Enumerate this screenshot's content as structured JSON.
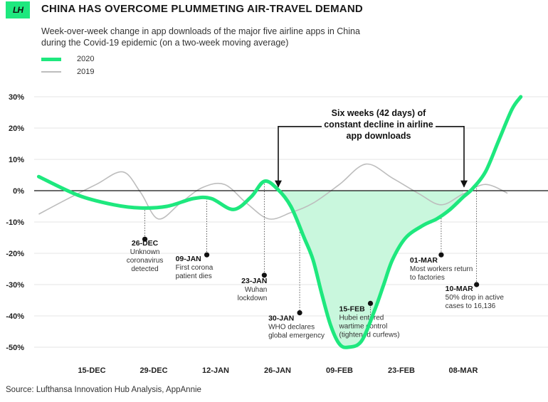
{
  "header": {
    "logo_text": "LH",
    "title": "CHINA HAS OVERCOME PLUMMETING AIR-TRAVEL DEMAND",
    "subtitle": "Week-over-week change in app downloads of the major five airline apps in China during the Covid-19 epidemic (on a two-week moving average)"
  },
  "footer": {
    "source": "Source: Lufthansa Innovation Hub Analysis, AppAnnie"
  },
  "colors": {
    "series_2020": "#1ee87e",
    "series_2019": "#bdbdbd",
    "fill": "#c9f7dd",
    "axis": "#111111"
  },
  "chart_data": {
    "type": "line",
    "x_unit": "date",
    "ylim": [
      -50,
      30
    ],
    "xlim": [
      "2019-12-01",
      "2020-03-22"
    ],
    "y_ticks": [
      30,
      20,
      10,
      0,
      -10,
      -20,
      -30,
      -40,
      -50
    ],
    "y_tick_labels": [
      "30%",
      "20%",
      "10%",
      "0%",
      "-10%",
      "-20%",
      "-30%",
      "-40%",
      "-50%"
    ],
    "x_ticks": [
      {
        "date": "2019-12-15",
        "label": "15-DEC"
      },
      {
        "date": "2019-12-29",
        "label": "29-DEC"
      },
      {
        "date": "2020-01-12",
        "label": "12-JAN"
      },
      {
        "date": "2020-01-26",
        "label": "26-JAN"
      },
      {
        "date": "2020-02-09",
        "label": "09-FEB"
      },
      {
        "date": "2020-02-23",
        "label": "23-FEB"
      },
      {
        "date": "2020-03-08",
        "label": "08-MAR"
      }
    ],
    "grid": true,
    "legend": "top-left",
    "series": [
      {
        "name": "2020",
        "points": [
          [
            "2019-12-03",
            4.5
          ],
          [
            "2019-12-12",
            -1.5
          ],
          [
            "2019-12-20",
            -4.5
          ],
          [
            "2019-12-26",
            -5.5
          ],
          [
            "2020-01-01",
            -5
          ],
          [
            "2020-01-07",
            -2.5
          ],
          [
            "2020-01-11",
            -2.5
          ],
          [
            "2020-01-16",
            -6
          ],
          [
            "2020-01-20",
            -2
          ],
          [
            "2020-01-23",
            3
          ],
          [
            "2020-01-26",
            0.5
          ],
          [
            "2020-01-29",
            -5
          ],
          [
            "2020-02-01",
            -15
          ],
          [
            "2020-02-03",
            -22
          ],
          [
            "2020-02-05",
            -33
          ],
          [
            "2020-02-07",
            -43
          ],
          [
            "2020-02-09",
            -49
          ],
          [
            "2020-02-11",
            -50
          ],
          [
            "2020-02-14",
            -48
          ],
          [
            "2020-02-17",
            -38
          ],
          [
            "2020-02-19",
            -30
          ],
          [
            "2020-02-21",
            -22
          ],
          [
            "2020-02-24",
            -15
          ],
          [
            "2020-02-28",
            -11
          ],
          [
            "2020-03-02",
            -9
          ],
          [
            "2020-03-05",
            -6
          ],
          [
            "2020-03-08",
            -2
          ],
          [
            "2020-03-10",
            0.5
          ],
          [
            "2020-03-13",
            6
          ],
          [
            "2020-03-16",
            16
          ],
          [
            "2020-03-19",
            26
          ],
          [
            "2020-03-21",
            30
          ]
        ]
      },
      {
        "name": "2019",
        "points": [
          [
            "2019-12-03",
            -7.5
          ],
          [
            "2019-12-09",
            -3
          ],
          [
            "2019-12-16",
            2
          ],
          [
            "2019-12-22",
            6
          ],
          [
            "2019-12-26",
            -0.5
          ],
          [
            "2019-12-30",
            -9
          ],
          [
            "2020-01-04",
            -4
          ],
          [
            "2020-01-09",
            1
          ],
          [
            "2020-01-14",
            2
          ],
          [
            "2020-01-19",
            -4
          ],
          [
            "2020-01-24",
            -9
          ],
          [
            "2020-01-29",
            -7
          ],
          [
            "2020-02-03",
            -4
          ],
          [
            "2020-02-09",
            2
          ],
          [
            "2020-02-15",
            8.5
          ],
          [
            "2020-02-21",
            4
          ],
          [
            "2020-02-27",
            -1
          ],
          [
            "2020-03-03",
            -4.5
          ],
          [
            "2020-03-08",
            -1
          ],
          [
            "2020-03-13",
            2
          ],
          [
            "2020-03-18",
            -0.8
          ]
        ]
      }
    ],
    "annotations": [
      {
        "date": "2019-12-27",
        "value": -15.5,
        "date_label": "26-DEC",
        "text": [
          "Unknown",
          "coronavirus",
          "detected"
        ],
        "anchor": "middle",
        "text_y": -17.5
      },
      {
        "date": "2020-01-10",
        "value": -20.5,
        "date_label": "09-JAN",
        "text": [
          "First corona",
          "patient dies"
        ],
        "anchor": "start",
        "text_y": -22.5
      },
      {
        "date": "2020-01-23",
        "value": -27,
        "date_label": "23-JAN",
        "text": [
          "Wuhan",
          "lockdown"
        ],
        "anchor": "end",
        "text_y": -29.5
      },
      {
        "date": "2020-01-31",
        "value": -39,
        "date_label": "30-JAN",
        "text": [
          "WHO declares",
          "global emergency"
        ],
        "anchor": "start",
        "text_y": -41.5
      },
      {
        "date": "2020-02-16",
        "value": -36,
        "date_label": "15-FEB",
        "text": [
          "Hubei entered",
          "wartime control",
          "(tightened curfews)"
        ],
        "anchor": "start",
        "text_y": -38.5
      },
      {
        "date": "2020-03-03",
        "value": -20.5,
        "date_label": "01-MAR",
        "text": [
          "Most workers return",
          "to factories"
        ],
        "anchor": "start",
        "text_y": -23
      },
      {
        "date": "2020-03-11",
        "value": -30,
        "date_label": "10-MAR",
        "text": [
          "50% drop in active",
          "cases to 16,136"
        ],
        "anchor": "start",
        "text_y": -32
      }
    ],
    "callout": {
      "text": [
        "Six weeks (42 days) of",
        "constant decline in airline",
        "app downloads"
      ],
      "start_date": "2020-01-26",
      "end_date": "2020-03-08",
      "y": 20.5
    }
  }
}
